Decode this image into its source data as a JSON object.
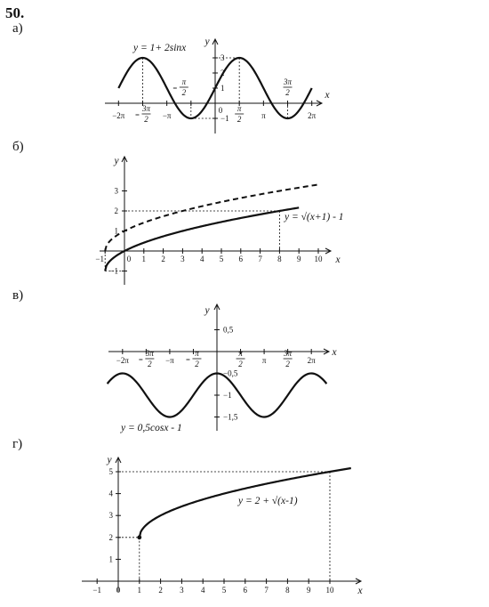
{
  "problem_number": "50.",
  "parts": [
    {
      "label": "а)"
    },
    {
      "label": "б)"
    },
    {
      "label": "в)"
    },
    {
      "label": "г)"
    }
  ],
  "chart_data": [
    {
      "type": "line",
      "part": "а)",
      "equation": "y = 1+ 2sinx",
      "xlabel": "x",
      "ylabel": "y",
      "x_tick_labels": [
        "-2π",
        "-3π/2",
        "-π",
        "-π/2",
        "0",
        "π/2",
        "π",
        "3π/2",
        "2π"
      ],
      "y_tick_labels": [
        "3",
        "2",
        "1",
        "-1"
      ],
      "series": [
        {
          "x": [
            -6.283,
            -4.712,
            -3.142,
            -1.571,
            0,
            1.571,
            3.142,
            4.712,
            6.283
          ],
          "y": [
            1,
            3,
            1,
            -1,
            1,
            3,
            1,
            -1,
            1
          ]
        }
      ]
    },
    {
      "type": "line",
      "part": "б)",
      "equation": "y = √(x+1) - 1",
      "xlabel": "x",
      "ylabel": "y",
      "x_tick_labels": [
        "-1",
        "0",
        "1",
        "2",
        "3",
        "4",
        "5",
        "6",
        "7",
        "8",
        "9",
        "10"
      ],
      "y_tick_labels": [
        "3",
        "2",
        "1",
        "-1"
      ],
      "series": [
        {
          "x": [
            -1,
            0,
            3,
            8,
            9
          ],
          "y": [
            -1,
            0,
            1,
            2,
            2.16
          ]
        },
        {
          "x": [
            -1,
            0,
            3,
            8,
            10
          ],
          "y": [
            0,
            1,
            2,
            3,
            3.32
          ]
        }
      ]
    },
    {
      "type": "line",
      "part": "в)",
      "equation": "y = 0,5cosx - 1",
      "xlabel": "x",
      "ylabel": "y",
      "x_tick_labels": [
        "-2π",
        "-3π/2",
        "-π",
        "-π/2",
        "0",
        "π/2",
        "π",
        "3π/2",
        "2π"
      ],
      "y_tick_labels": [
        "0,5",
        "-0,5",
        "-1",
        "-1,5"
      ],
      "series": [
        {
          "x": [
            -6.283,
            -3.142,
            0,
            3.142,
            6.283
          ],
          "y": [
            -0.5,
            -1.5,
            -0.5,
            -1.5,
            -0.5
          ]
        }
      ]
    },
    {
      "type": "line",
      "part": "г)",
      "equation": "y = 2 + √(x-1)",
      "xlabel": "x",
      "ylabel": "y",
      "x_tick_labels": [
        "-1",
        "0",
        "1",
        "2",
        "3",
        "4",
        "5",
        "6",
        "7",
        "8",
        "9",
        "10"
      ],
      "y_tick_labels": [
        "5",
        "4",
        "3",
        "2",
        "1"
      ],
      "series": [
        {
          "x": [
            1,
            2,
            5,
            10
          ],
          "y": [
            2,
            3,
            4,
            5
          ]
        }
      ]
    }
  ]
}
